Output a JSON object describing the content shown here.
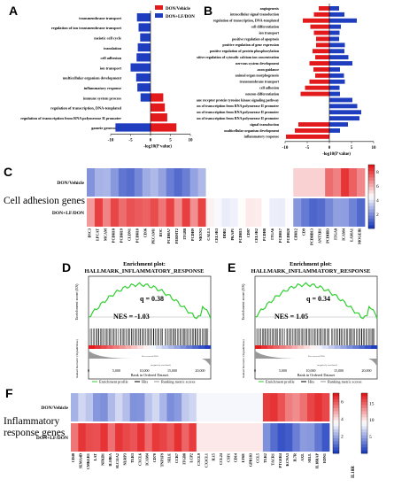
{
  "panels": {
    "A": "A",
    "B": "B",
    "C": "C",
    "D": "D",
    "E": "E",
    "F": "F"
  },
  "chart_data": [
    {
      "id": "A",
      "type": "bar",
      "orientation": "horizontal",
      "categories": [
        "transmembrane transport",
        "regulation of ion transmembrane transport",
        "meiotic cell cycle",
        "translation",
        "cell adhesion",
        "ion transport",
        "multicellular organism development",
        "inflammatory response",
        "immune system process",
        "regulation of transcription, DNA-templated",
        "regulation of transcription from RNA polymerase II promoter",
        "gamete generation"
      ],
      "series": [
        {
          "name": "DON/Vehicle",
          "color": "#e31a1c",
          "values": [
            0,
            0,
            0,
            0,
            0,
            0,
            0,
            0,
            3.2,
            3.6,
            4.2,
            6.5
          ]
        },
        {
          "name": "DON+LF/DON",
          "color": "#1f3ebf",
          "values": [
            -3.4,
            -3.0,
            -2.6,
            -3.2,
            -3.5,
            -5.0,
            -3.6,
            -3.3,
            -2.5,
            0,
            0,
            -8.8
          ]
        }
      ],
      "xlim": [
        -10,
        10
      ],
      "xticks": [
        -10,
        -5,
        0,
        5,
        10
      ],
      "xlabel": "-log10(P value)"
    },
    {
      "id": "B",
      "type": "bar",
      "orientation": "horizontal",
      "categories": [
        "angiogenesis",
        "intracellular signal transduction",
        "regulation of transcription, DNA-templated",
        "cell differentiation",
        "ion transport",
        "positive regulation of apoptosis",
        "positive regulation of gene expression",
        "positive regulation of protein phosphorylation",
        "positive regulation of cytosolic calcium ion concentration",
        "nervous system development",
        "axon guidance",
        "animal organ morphogenesis",
        "transmembrane transport",
        "cell adhesion",
        "neuron differentiation",
        "transmembrane receptor protein tyrosine kinase signaling pathway",
        "positive regulation of transcription from RNA polymerase II promoter",
        "regulation of transcription from RNA polymerase II promoter",
        "negative regulation of transcription from RNA polymerase II promoter",
        "signal transduction",
        "multicellular organism development",
        "inflammatory response"
      ],
      "series": [
        {
          "name": "DON/Vehicle",
          "color": "#e31a1c",
          "values": [
            -2.4,
            -3.5,
            -6.0,
            -4.3,
            -3.5,
            -3.0,
            -3.0,
            -3.8,
            -3.2,
            -4.5,
            -3.6,
            -3.2,
            -4.5,
            -5.5,
            -6.5,
            0,
            0,
            0,
            0,
            -7.0,
            -7.8,
            -9.8
          ]
        },
        {
          "name": "DON+LF/DON",
          "color": "#1f3ebf",
          "values": [
            2.2,
            3.4,
            6.2,
            2.6,
            2.3,
            2.2,
            3.5,
            3.4,
            4.3,
            5.2,
            2.4,
            3.3,
            3.5,
            2.3,
            2.4,
            5.2,
            6.3,
            7.2,
            6.8,
            4.2,
            2.4,
            0
          ]
        }
      ],
      "xlim": [
        -10,
        10
      ],
      "xticks": [
        -10,
        -5,
        0,
        5,
        10
      ],
      "xlabel": "-log10(P value)"
    },
    {
      "id": "C",
      "type": "heatmap",
      "section_label": "Cell adhesion genes",
      "rows": [
        "DON/Vehicle",
        "DON+LF/DON"
      ],
      "columns": [
        "DSC3",
        "LPCAT",
        "MCAM",
        "PCDH18",
        "PCDH19",
        "CLDN1",
        "PCDH10",
        "CD36",
        "PECAM1",
        "BOC",
        "PCDHA7",
        "FERMT2",
        "ITGB8",
        "PCDH9",
        "NRXN3",
        "CALL3",
        "CELSR3",
        "DDR1",
        "PKAP1",
        "PCDH15",
        "CD97",
        "CELSR2",
        "PCDH8",
        "ITGA6",
        "PCDH17",
        "PCDH20",
        "CDH12",
        "CD9",
        "PCDHB13",
        "ANTXR1",
        "PCDHB3",
        "ITGA8",
        "ICAM4",
        "LAMA1",
        "MOGEIR"
      ],
      "colorbar": {
        "ticks": [
          2,
          4,
          6,
          8
        ],
        "low": "#1f3ebf",
        "mid": "#ffffff",
        "high": "#e31a1c"
      }
    },
    {
      "id": "D",
      "type": "line",
      "header": "Enrichment plot:",
      "title": "HALLMARK_INFLAMMATORY_RESPONSE",
      "q": "q = 0.38",
      "nes": "NES = -1.03",
      "ylabel": "Enrichment score (ES)",
      "xlabel": "Rank in Ordered Dataset",
      "xticks": [
        "0",
        "5,000",
        "10,000",
        "15,000",
        "20,000"
      ],
      "legend": [
        "Enrichment profile",
        "Hits",
        "Ranking metric scores"
      ]
    },
    {
      "id": "E",
      "type": "line",
      "header": "Enrichment plot:",
      "title": "HALLMARK_INFLAMMATORY_RESPONSE",
      "q": "q = 0.34",
      "nes": "NES = 1.05",
      "ylabel": "Enrichment score (ES)",
      "xlabel": "Rank in Ordered Dataset",
      "xticks": [
        "0",
        "5,000",
        "10,000",
        "15,000",
        "20,000"
      ],
      "legend": [
        "Enrichment profile",
        "Hits",
        "Ranking metric scores"
      ]
    },
    {
      "id": "F",
      "type": "heatmap",
      "section_label": "Inflammatory response genes",
      "rows": [
        "DON/Vehicle",
        "DON+LF/DON"
      ],
      "columns": [
        "CD48",
        "SEMA4D",
        "CMKLR1",
        "LAT",
        "NFKB1",
        "IL10RA",
        "SLC11A2",
        "NLRP3",
        "TLR3",
        "CXCL6",
        "ICAM4",
        "CD70",
        "TNFSF9",
        "SELE",
        "CCR7",
        "ITGB8",
        "LCP2",
        "CXCL9",
        "CX3CL1",
        "IL15",
        "CCL24",
        "CSF1",
        "CD14",
        "LY6E",
        "GPR183",
        "CCL5",
        "TLR2",
        "TACR1",
        "PTGER4",
        "KCNA3",
        "IL7R",
        "AXL",
        "SELL",
        "IL18RAP",
        "EDN1"
      ],
      "colorbar1": {
        "ticks": [
          2,
          4,
          6
        ]
      },
      "colorbar2": {
        "ticks": [
          5,
          10,
          15
        ]
      },
      "corner": "IL18R"
    }
  ]
}
